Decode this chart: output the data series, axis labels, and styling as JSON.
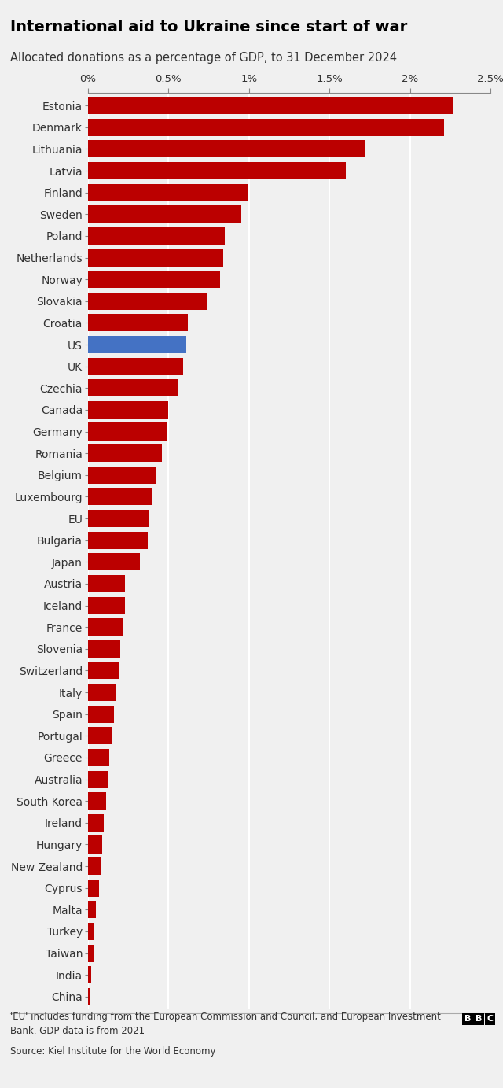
{
  "title": "International aid to Ukraine since start of war",
  "subtitle": "Allocated donations as a percentage of GDP, to 31 December 2024",
  "footnote": "'EU' includes funding from the European Commission and Council, and European Investment\nBank. GDP data is from 2021",
  "source": "Source: Kiel Institute for the World Economy",
  "xlim": [
    0,
    2.5
  ],
  "xticks": [
    0,
    0.5,
    1.0,
    1.5,
    2.0,
    2.5
  ],
  "xticklabels": [
    "0%",
    "0.5%",
    "1%",
    "1.5%",
    "2%",
    "2.5%"
  ],
  "background_color": "#f0f0f0",
  "bar_color_default": "#bb0000",
  "bar_color_us": "#4472c4",
  "countries": [
    "Estonia",
    "Denmark",
    "Lithuania",
    "Latvia",
    "Finland",
    "Sweden",
    "Poland",
    "Netherlands",
    "Norway",
    "Slovakia",
    "Croatia",
    "US",
    "UK",
    "Czechia",
    "Canada",
    "Germany",
    "Romania",
    "Belgium",
    "Luxembourg",
    "EU",
    "Bulgaria",
    "Japan",
    "Austria",
    "Iceland",
    "France",
    "Slovenia",
    "Switzerland",
    "Italy",
    "Spain",
    "Portugal",
    "Greece",
    "Australia",
    "South Korea",
    "Ireland",
    "Hungary",
    "New Zealand",
    "Cyprus",
    "Malta",
    "Turkey",
    "Taiwan",
    "India",
    "China"
  ],
  "values": [
    2.27,
    2.21,
    1.72,
    1.6,
    0.99,
    0.95,
    0.85,
    0.84,
    0.82,
    0.74,
    0.62,
    0.61,
    0.59,
    0.56,
    0.5,
    0.49,
    0.46,
    0.42,
    0.4,
    0.38,
    0.37,
    0.32,
    0.23,
    0.23,
    0.22,
    0.2,
    0.19,
    0.17,
    0.16,
    0.15,
    0.13,
    0.12,
    0.11,
    0.1,
    0.09,
    0.08,
    0.07,
    0.05,
    0.04,
    0.04,
    0.02,
    0.01
  ]
}
